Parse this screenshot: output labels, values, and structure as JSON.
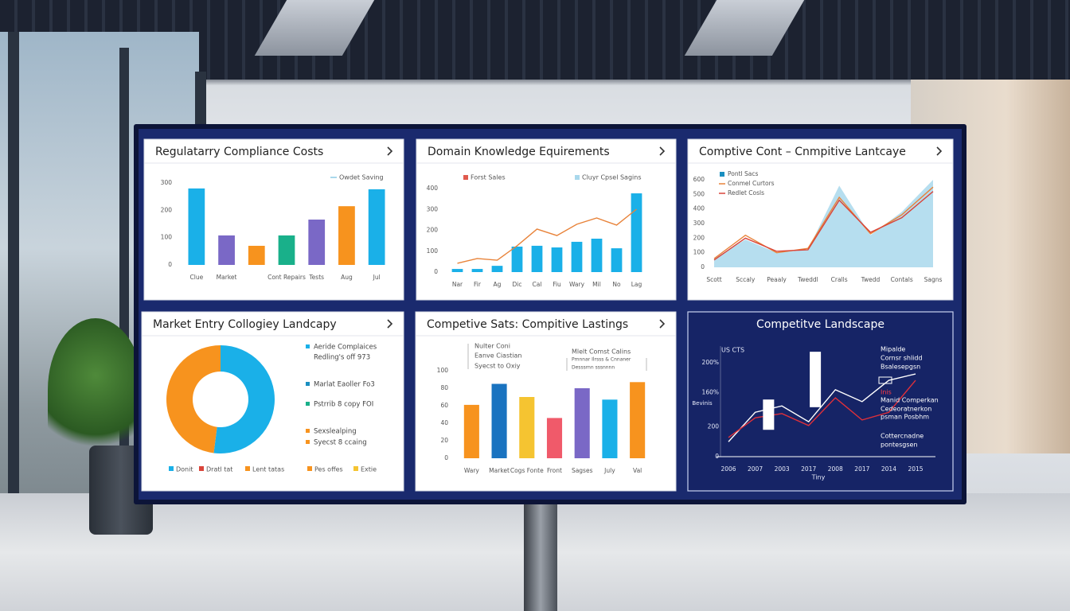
{
  "chart_data": [
    {
      "type": "bar",
      "title": "Regulatarry Compliance Costs",
      "legend": "Owdet Saving",
      "legend_color": "#a9d8ec",
      "categories": [
        "Clue",
        "Market",
        null,
        "Cont Repairs",
        "Tests",
        "Aug",
        "Jul"
      ],
      "values": [
        280,
        108,
        70,
        108,
        166,
        215,
        277
      ],
      "colors": [
        "#1ab0e8",
        "#7a68c6",
        "#f7931e",
        "#19b08a",
        "#7a68c6",
        "#f7931e",
        "#1ab0e8"
      ],
      "ylim": [
        0,
        300
      ],
      "yticks": [
        0,
        100,
        200,
        300
      ],
      "grid": false
    },
    {
      "type": "bar",
      "title": "Domain Knowledge Equirements",
      "categories": [
        "Nar",
        "Fir",
        "Ag",
        "Dic",
        "Cal",
        "Fiu",
        "Wary",
        "Mil",
        "No",
        "Lag"
      ],
      "series": [
        {
          "name": "Cluyr Cpsel Sagins",
          "kind": "bar",
          "color": "#1ab0e8",
          "values": [
            15,
            15,
            30,
            122,
            126,
            118,
            145,
            160,
            114,
            377
          ]
        },
        {
          "name": "Forst Sales",
          "kind": "line",
          "color": "#e8833a",
          "values": [
            42,
            65,
            57,
            126,
            206,
            175,
            229,
            259,
            225,
            301
          ]
        }
      ],
      "ylim": [
        0,
        400
      ],
      "yticks": [
        0,
        100,
        200,
        300,
        400
      ],
      "grid": false
    },
    {
      "type": "area",
      "title": "Comptive Cont – Cnmpitive Lantcaye",
      "categories": [
        "Scott",
        "Sccaly",
        "Peaaly",
        "Tweddl",
        "Cralls",
        "Twedd",
        "Contals",
        "Sagns"
      ],
      "series": [
        {
          "name": "Pontl Sacs",
          "kind": "area",
          "color": "#a9d8ec",
          "values": [
            60,
            190,
            100,
            120,
            560,
            220,
            380,
            600
          ]
        },
        {
          "name": "Conmel Curtors",
          "kind": "line",
          "color": "#e8833a",
          "values": [
            60,
            220,
            100,
            130,
            480,
            230,
            360,
            550
          ]
        },
        {
          "name": "Redlet Cosls",
          "kind": "line",
          "color": "#d9443a",
          "values": [
            50,
            200,
            110,
            120,
            460,
            240,
            340,
            520
          ]
        }
      ],
      "ylim": [
        0,
        600
      ],
      "yticks": [
        0,
        100,
        200,
        300,
        400,
        500,
        600
      ],
      "grid": false
    },
    {
      "type": "donut",
      "title": "Market Entry Collogiey Landcapy",
      "categories": [
        "Donit",
        "Dratl tat",
        "Lent tatas",
        "Pes offes",
        "Extie"
      ],
      "values": [
        52,
        null,
        null,
        48,
        null
      ],
      "colors": [
        "#1ab0e8",
        "#d9443a",
        "#f7931e",
        "#f7931e",
        "#f5c431"
      ],
      "notes": [
        "Aeride Complaices",
        "Redling's off 973",
        "Marlat Eaoller Fo3",
        "Pstrrib 8 copy FOI",
        "Sexslealping",
        "Syecst 8 ccaing"
      ],
      "note_colors": [
        "#1ab0e8",
        null,
        "#1a8fc0",
        "#19b08a",
        "#f7931e",
        "#f7931e"
      ]
    },
    {
      "type": "bar",
      "title": "Competive Sats: Compitive Lastings",
      "legend": [
        "Nulter Coni",
        "Eanve Ciastian",
        "Syecst to Oxiy",
        "Mlelt Comst Calins",
        "Pmnnar Ilrsss & Cnnaner",
        "Desssrnn sssnnnn"
      ],
      "categories": [
        "Wary",
        "Market",
        "Cogs Fonte",
        "Front",
        "Sagses",
        "July",
        "Val"
      ],
      "values": [
        61,
        85,
        70,
        46,
        80,
        67,
        87
      ],
      "colors": [
        "#f7931e",
        "#1a73c0",
        "#f5c431",
        "#f05a6a",
        "#7a68c6",
        "#1ab0e8",
        "#f7931e"
      ],
      "ylim": [
        0,
        100
      ],
      "yticks": [
        0,
        20,
        40,
        60,
        80,
        100
      ],
      "grid": false
    },
    {
      "type": "line",
      "title": "Competitve Landscape",
      "corner_label": "US CTS",
      "y_label": "Bevinis",
      "x_label": "Tiny",
      "categories": [
        "2006",
        "2007",
        "2003",
        "2017",
        "2008",
        "2017",
        "2014",
        "2015"
      ],
      "series": [
        {
          "kind": "line",
          "color": "#ffffff",
          "values": [
            35,
            104,
            119,
            82,
            157,
            129,
            179,
            194
          ]
        },
        {
          "kind": "line",
          "color": "#e0303a",
          "values": [
            45,
            91,
            101,
            73,
            138,
            86,
            104,
            179
          ]
        }
      ],
      "boxes": [
        {
          "x": 1.5,
          "low": 63,
          "high": 134
        },
        {
          "x": 3.25,
          "low": 116,
          "high": 246
        }
      ],
      "notes": [
        "Mipalde",
        "Cornsr shlidd",
        "Bsalesepgsn",
        "Inis",
        "Manid Comperkan",
        "Cedeoratnerkon",
        "psman Posbhm",
        "Cottercnadne",
        "pontesgsen"
      ],
      "note_colors": [
        "#ffffff",
        "#ffffff",
        "#ffffff",
        "#ff3a44",
        "#ffffff",
        "#ffffff",
        "#ffffff",
        "#ffffff",
        "#ffffff"
      ],
      "ylim": [
        0,
        250
      ],
      "yticks": [
        0,
        {
          "value": 70,
          "label": "200"
        },
        {
          "value": 150,
          "label": "160%"
        },
        {
          "value": 220,
          "label": "200%"
        }
      ],
      "grid": false
    }
  ]
}
